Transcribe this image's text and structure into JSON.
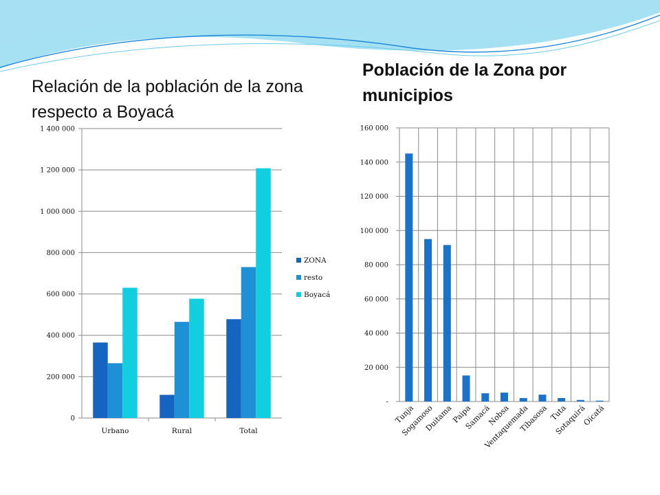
{
  "theme": {
    "zona_color": "#1565C0",
    "resto_color": "#1E90D6",
    "boyaca_color": "#12CFE0",
    "municipio_color": "#1A73C8",
    "wave_colors": [
      "#5BC8E8",
      "#A7DFF2",
      "#1E88D8"
    ]
  },
  "slide": {
    "left_title": "Relación de la población de la zona respecto a Boyacá",
    "right_title": "Población de la Zona por municipios"
  },
  "chart_data": [
    {
      "type": "bar",
      "title": "Relación de la población de la zona respecto a Boyacá",
      "categories": [
        "Urbano",
        "Rural",
        "Total"
      ],
      "series": [
        {
          "name": "ZONA",
          "values": [
            365000,
            112000,
            478000
          ]
        },
        {
          "name": "resto",
          "values": [
            265000,
            465000,
            730000
          ]
        },
        {
          "name": "Boyacá",
          "values": [
            630000,
            577000,
            1208000
          ]
        }
      ],
      "y_ticks": [
        0,
        200000,
        400000,
        600000,
        800000,
        1000000,
        1200000,
        1400000
      ],
      "y_tick_labels": [
        "0",
        "200 000",
        "400 000",
        "600 000",
        "800 000",
        "1 000 000",
        "1 200 000",
        "1 400 000"
      ],
      "ylim": [
        0,
        1400000
      ],
      "grid": true,
      "legend": "right"
    },
    {
      "type": "bar",
      "title": "Población de la Zona por municipios",
      "categories": [
        "Tunja",
        "Sogamoso",
        "Duitama",
        "Paipa",
        "Samacá",
        "Nobsa",
        "Ventaquemada",
        "Tibasosa",
        "Tuta",
        "Sotaquirá",
        "Oicatá"
      ],
      "values": [
        145000,
        95000,
        91500,
        15200,
        4800,
        5200,
        2000,
        4000,
        2000,
        900,
        500
      ],
      "y_ticks": [
        0,
        20000,
        40000,
        60000,
        80000,
        100000,
        120000,
        140000,
        160000
      ],
      "y_tick_labels": [
        "-",
        "20 000",
        "40 000",
        "60 000",
        "80 000",
        "100 000",
        "120 000",
        "140 000",
        "160 000"
      ],
      "ylim": [
        0,
        160000
      ],
      "grid": true,
      "legend": "none"
    }
  ]
}
